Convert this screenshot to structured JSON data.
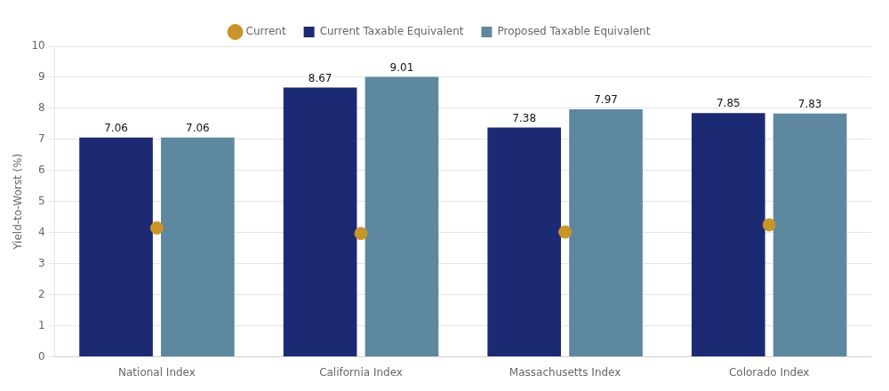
{
  "chart_data": {
    "type": "bar",
    "categories": [
      "National Index",
      "California Index",
      "Massachusetts Index",
      "Colorado Index"
    ],
    "series": [
      {
        "name": "Current Taxable Equivalent",
        "type": "bar",
        "color": "#1b2a72",
        "values": [
          7.06,
          8.67,
          7.38,
          7.85
        ],
        "data_labels": true
      },
      {
        "name": "Proposed Taxable Equivalent",
        "type": "bar",
        "color": "#5e87a0",
        "values": [
          7.06,
          9.01,
          7.97,
          7.83
        ],
        "data_labels": true
      },
      {
        "name": "Current",
        "type": "scatter",
        "marker": "circle",
        "color": "#c8952a",
        "values": [
          4.15,
          3.97,
          4.02,
          4.25
        ]
      }
    ],
    "ylabel": "Yield-to-Worst (%)",
    "ylim": [
      0,
      10
    ],
    "yticks": [
      0,
      1,
      2,
      3,
      4,
      5,
      6,
      7,
      8,
      9,
      10
    ],
    "grid": true,
    "legend": "top"
  }
}
